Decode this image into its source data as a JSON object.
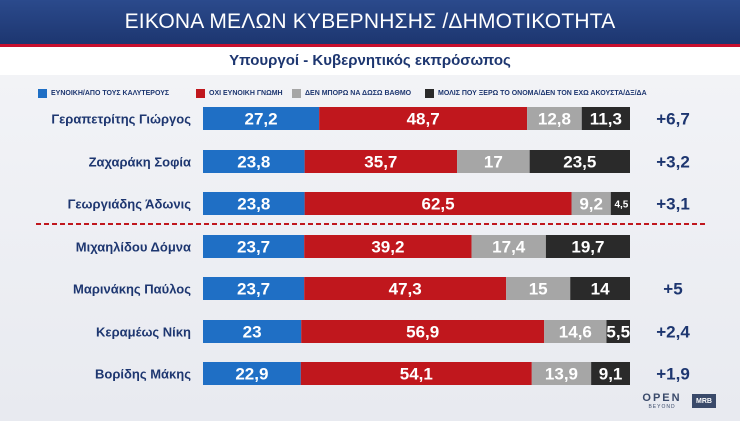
{
  "header": {
    "title": "ΕΙΚΟΝΑ ΜΕΛΩΝ ΚΥΒΕΡΝΗΣΗΣ /ΔΗΜΟΤΙΚΟΤΗΤΑ"
  },
  "subheader": {
    "title": "Υπουργοί - Κυβερνητικός εκπρόσωπος"
  },
  "branding": {
    "logo_main": "OPEN",
    "logo_sub": "BEYOND",
    "mrb": "MRB"
  },
  "chart_data": {
    "type": "bar",
    "orientation": "horizontal",
    "stacked": true,
    "categories": [
      "Γεραπετρίτης Γιώργος",
      "Ζαχαράκη Σοφία",
      "Γεωργιάδης Άδωνις",
      "Μιχαηλίδου Δόμνα",
      "Μαρινάκης Παύλος",
      "Κεραμέως Νίκη",
      "Βορίδης Μάκης"
    ],
    "series": [
      {
        "name": "ΕΥΝΟΙΚΗ/ΑΠΟ ΤΟΥΣ ΚΑΛΥΤΕΡΟΥΣ",
        "color": "#1f6fc5",
        "values": [
          27.2,
          23.8,
          23.8,
          23.7,
          23.7,
          23,
          22.9
        ],
        "labels": [
          "27,2",
          "23,8",
          "23,8",
          "23,7",
          "23,7",
          "23",
          "22,9"
        ]
      },
      {
        "name": "ΟΧΙ ΕΥΝΟΙΚΗ ΓΝΩΜΗ",
        "color": "#c0171d",
        "values": [
          48.7,
          35.7,
          62.5,
          39.2,
          47.3,
          56.9,
          54.1
        ],
        "labels": [
          "48,7",
          "35,7",
          "62,5",
          "39,2",
          "47,3",
          "56,9",
          "54,1"
        ]
      },
      {
        "name": "ΔΕΝ ΜΠΟΡΩ ΝΑ ΔΩΣΩ ΒΑΘΜΟ",
        "color": "#a6a6a6",
        "values": [
          12.8,
          17,
          9.2,
          17.4,
          15,
          14.6,
          13.9
        ],
        "labels": [
          "12,8",
          "17",
          "9,2",
          "17,4",
          "15",
          "14,6",
          "13,9"
        ]
      },
      {
        "name": "ΜΟΛΙΣ ΠΟΥ ΞΕΡΩ ΤΟ ΟΝΟΜΑ/ΔΕΝ ΤΟΝ ΕΧΩ ΑΚΟΥΣΤΑ/ΔΞ/ΔΑ",
        "color": "#2a2a2a",
        "values": [
          11.3,
          23.5,
          4.5,
          19.7,
          14,
          5.5,
          9.1
        ],
        "labels": [
          "11,3",
          "23,5",
          "4,5",
          "19,7",
          "14",
          "5,5",
          "9,1"
        ]
      }
    ],
    "changes": [
      "+6,7",
      "+3,2",
      "+3,1",
      "",
      "+5",
      "+2,4",
      "+1,9"
    ],
    "divider_after_index": 2,
    "xlim": [
      0,
      100
    ],
    "legend_position": "top",
    "grid": false
  }
}
